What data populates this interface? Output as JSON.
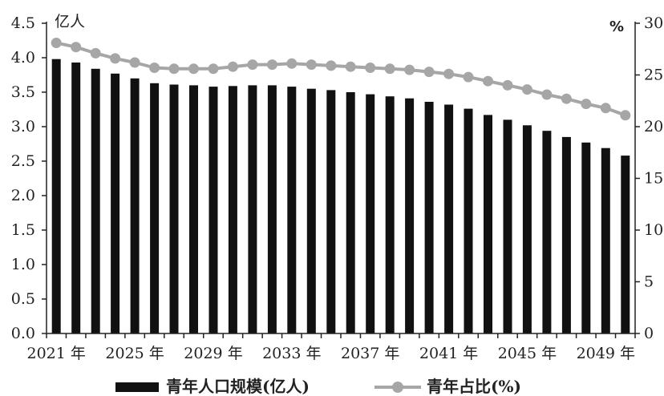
{
  "chart_data": {
    "type": "bar+line",
    "x": [
      2021,
      2022,
      2023,
      2024,
      2025,
      2026,
      2027,
      2028,
      2029,
      2030,
      2031,
      2032,
      2033,
      2034,
      2035,
      2036,
      2037,
      2038,
      2039,
      2040,
      2041,
      2042,
      2043,
      2044,
      2045,
      2046,
      2047,
      2048,
      2049,
      2050
    ],
    "x_tick_labels": [
      "2021 年",
      "2025 年",
      "2029 年",
      "2033 年",
      "2037 年",
      "2041 年",
      "2045 年",
      "2049 年"
    ],
    "left_axis": {
      "unit": "亿人",
      "range": [
        0,
        4.5
      ],
      "ticks": [
        "0.0",
        "0.5",
        "1.0",
        "1.5",
        "2.0",
        "2.5",
        "3.0",
        "3.5",
        "4.0",
        "4.5"
      ]
    },
    "right_axis": {
      "unit": "%",
      "range": [
        0,
        30
      ],
      "ticks": [
        "0",
        "5",
        "10",
        "15",
        "20",
        "25",
        "30"
      ]
    },
    "series": [
      {
        "name": "青年人口规模(亿人)",
        "type": "bar",
        "axis": "left",
        "color": "#111111",
        "values": [
          3.98,
          3.93,
          3.84,
          3.77,
          3.7,
          3.63,
          3.61,
          3.6,
          3.58,
          3.59,
          3.6,
          3.6,
          3.58,
          3.55,
          3.53,
          3.5,
          3.47,
          3.44,
          3.41,
          3.36,
          3.32,
          3.26,
          3.17,
          3.1,
          3.02,
          2.94,
          2.85,
          2.77,
          2.69,
          2.58
        ]
      },
      {
        "name": "青年占比(%)",
        "type": "line",
        "axis": "right",
        "color": "#a6a6a6",
        "values": [
          28.1,
          27.7,
          27.1,
          26.6,
          26.2,
          25.7,
          25.6,
          25.6,
          25.6,
          25.8,
          26.0,
          26.0,
          26.1,
          26.0,
          25.9,
          25.8,
          25.7,
          25.6,
          25.5,
          25.3,
          25.1,
          24.8,
          24.4,
          24.0,
          23.6,
          23.1,
          22.7,
          22.2,
          21.8,
          21.1
        ]
      }
    ]
  }
}
